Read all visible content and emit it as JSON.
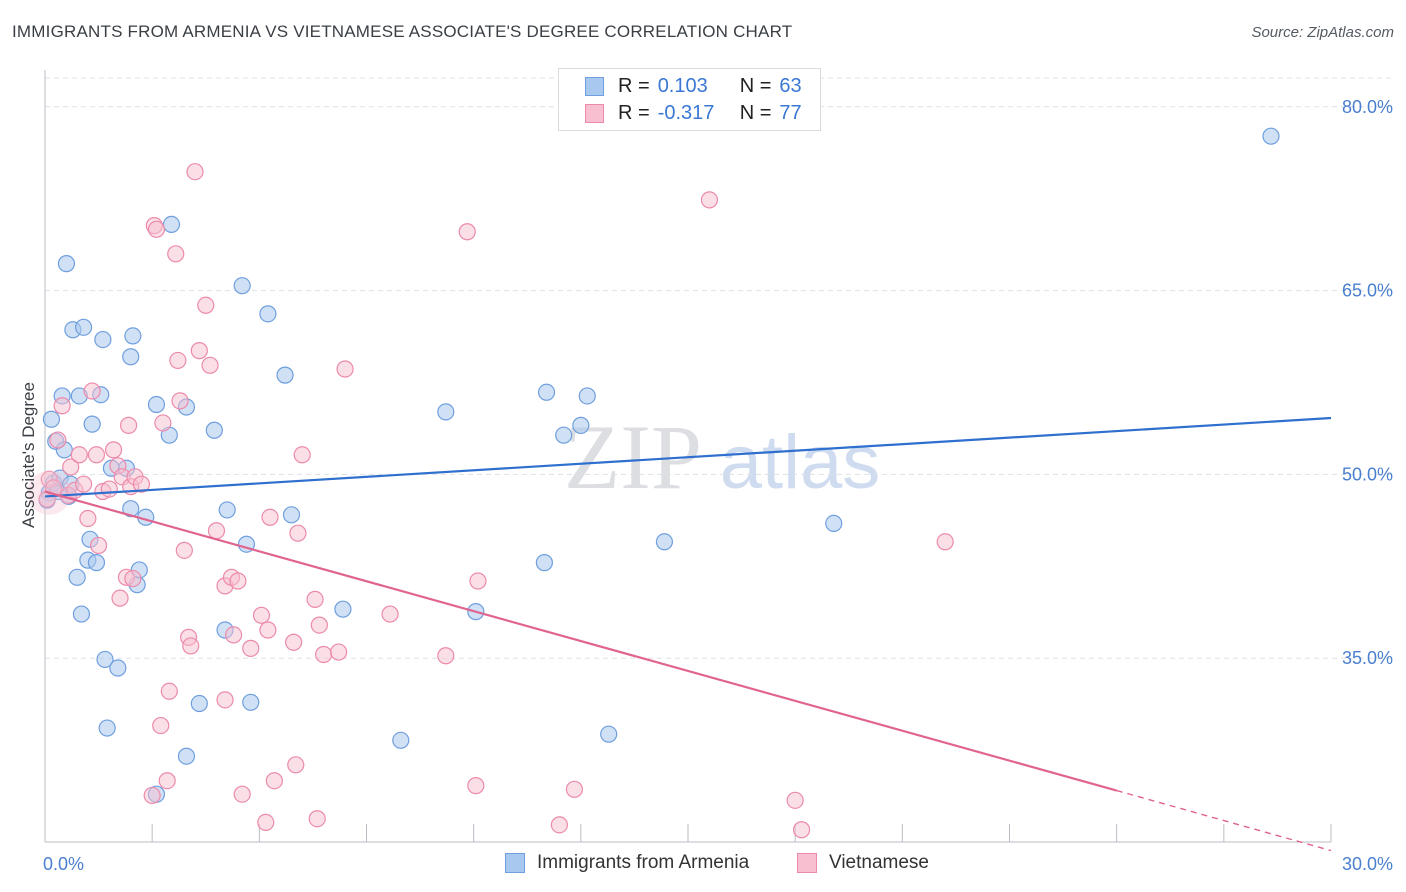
{
  "title": "IMMIGRANTS FROM ARMENIA VS VIETNAMESE ASSOCIATE'S DEGREE CORRELATION CHART",
  "source": "Source: ZipAtlas.com",
  "legend": {
    "rows": [
      {
        "r_label": "R =",
        "r_value": "0.103",
        "n_label": "N =",
        "n_value": "63"
      },
      {
        "r_label": "R =",
        "r_value": "-0.317",
        "n_label": "N =",
        "n_value": "77"
      }
    ]
  },
  "bottom_legend": [
    "Immigrants from Armenia",
    "Vietnamese"
  ],
  "watermark": {
    "zip": "ZIP",
    "atlas": "atlas"
  },
  "colors": {
    "blue_fill": "#a9c8ef",
    "blue_stroke": "#6f9fde",
    "blue_line": "#2f6fce",
    "pink_fill": "#f7bfd0",
    "pink_stroke": "#ec8aaa",
    "pink_line": "#e0648f",
    "tick_text": "#4a7fcf",
    "grid": "#dde1e6"
  },
  "chart_data": {
    "type": "scatter",
    "title": "IMMIGRANTS FROM ARMENIA VS VIETNAMESE ASSOCIATE'S DEGREE CORRELATION CHART",
    "xlabel": "",
    "ylabel": "Associate's Degree",
    "xlim": [
      0,
      30
    ],
    "ylim": [
      20,
      83
    ],
    "x_tick_labels": [
      "0.0%",
      "30.0%"
    ],
    "y_ticks": [
      35,
      50,
      65,
      80
    ],
    "y_tick_labels": [
      "35.0%",
      "50.0%",
      "65.0%",
      "80.0%"
    ],
    "grid": true,
    "legend_position": "top-center",
    "series": [
      {
        "name": "Immigrants from Armenia",
        "r": 0.103,
        "n": 63,
        "trend": {
          "x": [
            0,
            30
          ],
          "y": [
            48.2,
            54.6
          ]
        },
        "points": [
          [
            0.1,
            48.5
          ],
          [
            0.15,
            54.5
          ],
          [
            0.2,
            49.3
          ],
          [
            0.25,
            52.7
          ],
          [
            0.3,
            48.6
          ],
          [
            0.35,
            49.7
          ],
          [
            0.4,
            56.4
          ],
          [
            0.45,
            52.0
          ],
          [
            0.5,
            67.2
          ],
          [
            0.55,
            48.2
          ],
          [
            0.6,
            49.2
          ],
          [
            0.65,
            61.8
          ],
          [
            0.75,
            41.6
          ],
          [
            0.8,
            56.4
          ],
          [
            0.85,
            38.6
          ],
          [
            0.9,
            62.0
          ],
          [
            1.0,
            43.0
          ],
          [
            1.05,
            44.7
          ],
          [
            1.1,
            54.1
          ],
          [
            1.2,
            42.8
          ],
          [
            1.3,
            56.5
          ],
          [
            1.35,
            61.0
          ],
          [
            1.4,
            34.9
          ],
          [
            1.45,
            29.3
          ],
          [
            1.55,
            50.5
          ],
          [
            1.7,
            34.2
          ],
          [
            1.9,
            50.5
          ],
          [
            2.0,
            47.2
          ],
          [
            2.0,
            59.6
          ],
          [
            2.05,
            61.3
          ],
          [
            2.15,
            41.0
          ],
          [
            2.2,
            42.2
          ],
          [
            2.35,
            46.5
          ],
          [
            2.6,
            23.9
          ],
          [
            2.6,
            55.7
          ],
          [
            2.9,
            53.2
          ],
          [
            2.95,
            70.4
          ],
          [
            3.3,
            55.5
          ],
          [
            3.3,
            27.0
          ],
          [
            3.6,
            31.3
          ],
          [
            3.95,
            53.6
          ],
          [
            4.2,
            37.3
          ],
          [
            4.25,
            47.1
          ],
          [
            4.6,
            65.4
          ],
          [
            4.7,
            44.3
          ],
          [
            4.8,
            31.4
          ],
          [
            5.2,
            63.1
          ],
          [
            5.6,
            58.1
          ],
          [
            5.75,
            46.7
          ],
          [
            6.95,
            39.0
          ],
          [
            8.3,
            28.3
          ],
          [
            9.35,
            55.1
          ],
          [
            10.05,
            38.8
          ],
          [
            11.65,
            42.8
          ],
          [
            11.7,
            56.7
          ],
          [
            12.1,
            53.2
          ],
          [
            12.5,
            54.0
          ],
          [
            12.65,
            56.4
          ],
          [
            13.15,
            28.8
          ],
          [
            14.45,
            44.5
          ],
          [
            18.4,
            46.0
          ],
          [
            28.6,
            77.6
          ],
          [
            0.05,
            47.9
          ]
        ]
      },
      {
        "name": "Vietnamese",
        "r": -0.317,
        "n": 77,
        "trend": {
          "x": [
            0,
            25
          ],
          "y": [
            48.6,
            24.2
          ]
        },
        "trend_dashed": {
          "x": [
            25,
            30
          ],
          "y": [
            24.2,
            19.3
          ]
        },
        "points": [
          [
            0.05,
            48.0
          ],
          [
            0.1,
            49.6
          ],
          [
            0.2,
            48.9
          ],
          [
            0.3,
            52.8
          ],
          [
            0.4,
            55.6
          ],
          [
            0.55,
            48.3
          ],
          [
            0.6,
            50.6
          ],
          [
            0.7,
            48.7
          ],
          [
            0.8,
            51.6
          ],
          [
            0.9,
            49.2
          ],
          [
            1.0,
            46.4
          ],
          [
            1.1,
            56.8
          ],
          [
            1.2,
            51.6
          ],
          [
            1.25,
            44.2
          ],
          [
            1.35,
            48.6
          ],
          [
            1.5,
            48.8
          ],
          [
            1.6,
            52.0
          ],
          [
            1.7,
            50.7
          ],
          [
            1.75,
            39.9
          ],
          [
            1.8,
            49.8
          ],
          [
            1.9,
            41.6
          ],
          [
            1.95,
            54.0
          ],
          [
            2.0,
            49.0
          ],
          [
            2.05,
            41.5
          ],
          [
            2.1,
            49.8
          ],
          [
            2.25,
            49.2
          ],
          [
            2.5,
            23.8
          ],
          [
            2.55,
            70.3
          ],
          [
            2.6,
            70.0
          ],
          [
            2.7,
            29.5
          ],
          [
            2.75,
            54.2
          ],
          [
            2.85,
            25.0
          ],
          [
            2.9,
            32.3
          ],
          [
            3.05,
            68.0
          ],
          [
            3.1,
            59.3
          ],
          [
            3.15,
            56.0
          ],
          [
            3.25,
            43.8
          ],
          [
            3.35,
            36.7
          ],
          [
            3.4,
            36.0
          ],
          [
            3.5,
            74.7
          ],
          [
            3.6,
            60.1
          ],
          [
            3.75,
            63.8
          ],
          [
            3.85,
            58.9
          ],
          [
            4.0,
            45.4
          ],
          [
            4.2,
            31.6
          ],
          [
            4.2,
            40.9
          ],
          [
            4.35,
            41.6
          ],
          [
            4.4,
            36.9
          ],
          [
            4.5,
            41.3
          ],
          [
            4.6,
            23.9
          ],
          [
            4.8,
            35.8
          ],
          [
            5.05,
            38.5
          ],
          [
            5.15,
            21.6
          ],
          [
            5.2,
            37.3
          ],
          [
            5.25,
            46.5
          ],
          [
            5.35,
            25.0
          ],
          [
            5.8,
            36.3
          ],
          [
            5.85,
            26.3
          ],
          [
            5.9,
            45.2
          ],
          [
            6.0,
            51.6
          ],
          [
            6.3,
            39.8
          ],
          [
            6.35,
            21.9
          ],
          [
            6.4,
            37.7
          ],
          [
            6.5,
            35.3
          ],
          [
            6.85,
            35.5
          ],
          [
            7.0,
            58.6
          ],
          [
            8.05,
            38.6
          ],
          [
            9.35,
            35.2
          ],
          [
            9.85,
            69.8
          ],
          [
            10.05,
            24.6
          ],
          [
            10.1,
            41.3
          ],
          [
            12.0,
            21.4
          ],
          [
            12.35,
            24.3
          ],
          [
            15.5,
            72.4
          ],
          [
            17.5,
            23.4
          ],
          [
            17.65,
            21.0
          ],
          [
            21.0,
            44.5
          ]
        ]
      }
    ]
  }
}
